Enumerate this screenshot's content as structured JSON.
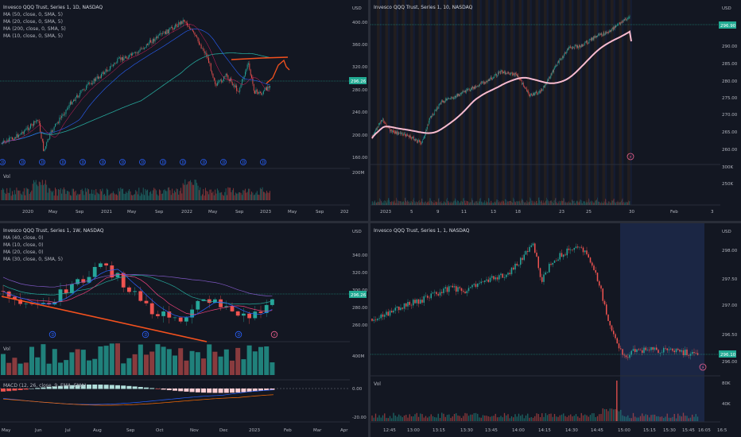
{
  "colors": {
    "background": "#131722",
    "grid": "#1e222d",
    "up": "#26a69a",
    "down": "#ef5350",
    "price_tag": "#22ab94",
    "drawing": "#f4511e",
    "session_bg": "#1e2a4d"
  },
  "panes": {
    "top_left": {
      "title": "Invesco QQQ Trust, Series 1, 1D, NASDAQ",
      "indicators": [
        "MA (50, close, 0, SMA, 5)",
        "MA (20, close, 0, SMA, 5)",
        "MA (200, close, 0, SMA, 5)",
        "MA (10, close, 0, SMA, 5)"
      ],
      "volume_label": "Vol",
      "price_unit": "USD",
      "price_ticks": [
        "400.00",
        "360.00",
        "320.00",
        "280.00",
        "240.00",
        "200.00",
        "160.00"
      ],
      "price_tag": "296.26",
      "volume_tick": "200M",
      "time_ticks": [
        "2020",
        "May",
        "Sep",
        "2021",
        "May",
        "Sep",
        "2022",
        "May",
        "Sep",
        "2023",
        "May",
        "Sep",
        "202"
      ]
    },
    "top_right": {
      "title": "Invesco QQQ Trust, Series 1, 10, NASDAQ",
      "price_unit": "USD",
      "price_ticks": [
        "290.00",
        "285.00",
        "280.00",
        "275.00",
        "270.00",
        "265.00",
        "260.00",
        "255.00"
      ],
      "price_tag": "296.90",
      "volume_tick": "250K",
      "volume_tick_top": "300K",
      "time_ticks": [
        "2023",
        "5",
        "9",
        "11",
        "13",
        "18",
        "23",
        "25",
        "30",
        "Feb",
        "3"
      ]
    },
    "bottom_left": {
      "title": "Invesco QQQ Trust, Series 1, 1W, NASDAQ",
      "indicators": [
        "MA (40, close, 0)",
        "MA (10, close, 0)",
        "MA (20, close, 0)",
        "MA (30, close, 0, SMA, 5)"
      ],
      "volume_label": "Vol",
      "macd_label": "MACD (12, 26, close, 9, EMA, EMA)",
      "price_unit": "USD",
      "price_ticks": [
        "340.00",
        "320.00",
        "300.00",
        "280.00",
        "260.00"
      ],
      "price_tag": "296.26",
      "volume_tick": "400M",
      "macd_ticks": [
        "0.00",
        "-20.00"
      ],
      "time_ticks": [
        "May",
        "Jun",
        "Jul",
        "Aug",
        "Sep",
        "Oct",
        "Nov",
        "Dec",
        "2023",
        "Feb",
        "Mar",
        "Apr"
      ]
    },
    "bottom_right": {
      "title": "Invesco QQQ Trust, Series 1, 1, NASDAQ",
      "volume_label": "Vol",
      "price_unit": "USD",
      "price_ticks": [
        "298.00",
        "297.50",
        "297.00",
        "296.50"
      ],
      "price_tag": "296.10",
      "price_tick_low": "296.00",
      "volume_ticks": [
        "80K",
        "40K"
      ],
      "time_ticks": [
        "12:45",
        "13:00",
        "13:15",
        "13:30",
        "13:45",
        "14:00",
        "14:15",
        "14:30",
        "14:45",
        "15:00",
        "15:15",
        "15:30",
        "15:45",
        "16:05",
        "16:5"
      ]
    }
  }
}
